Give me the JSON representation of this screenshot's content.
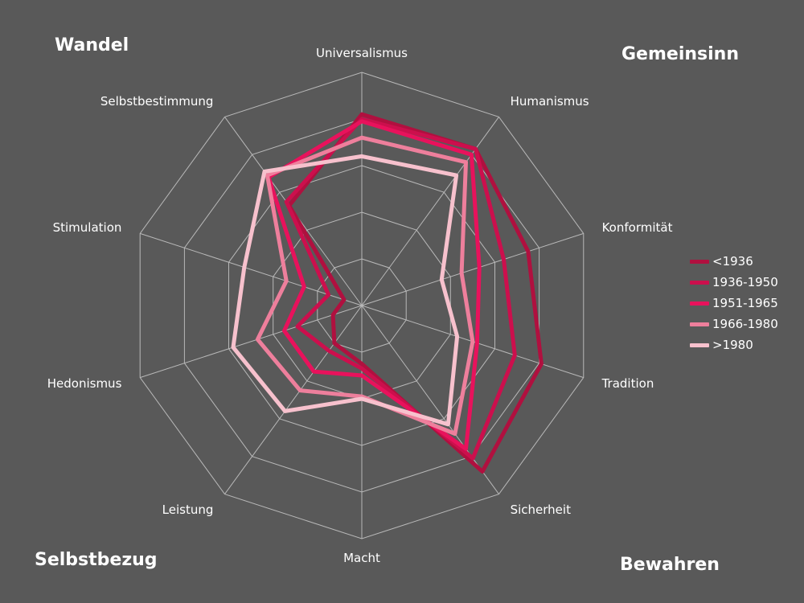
{
  "corners": {
    "top_left": "Wandel",
    "top_right": "Gemeinsinn",
    "bottom_left": "Selbstbezug",
    "bottom_right": "Bewahren"
  },
  "chart_data": {
    "type": "radar",
    "axes": [
      "Universalismus",
      "Humanismus",
      "Konformität",
      "Tradition",
      "Sicherheit",
      "Macht",
      "Leistung",
      "Hedonismus",
      "Stimulation",
      "Selbstbestimmung"
    ],
    "range": [
      0,
      1
    ],
    "rings": 5,
    "grid": true,
    "legend_position": "right",
    "series": [
      {
        "name": "<1936",
        "color": "#b0103f",
        "values": [
          0.82,
          0.83,
          0.75,
          0.81,
          0.88,
          0.25,
          0.2,
          0.13,
          0.08,
          0.53
        ]
      },
      {
        "name": "1936-1950",
        "color": "#cc0f4d",
        "values": [
          0.8,
          0.83,
          0.64,
          0.69,
          0.81,
          0.27,
          0.24,
          0.29,
          0.15,
          0.55
        ]
      },
      {
        "name": "1951-1965",
        "color": "#e8125c",
        "values": [
          0.79,
          0.8,
          0.53,
          0.52,
          0.76,
          0.3,
          0.35,
          0.35,
          0.26,
          0.68
        ]
      },
      {
        "name": "1966-1980",
        "color": "#ee7f9c",
        "values": [
          0.72,
          0.76,
          0.45,
          0.5,
          0.68,
          0.39,
          0.45,
          0.47,
          0.34,
          0.69
        ]
      },
      {
        "name": ">1980",
        "color": "#f7c1cd",
        "values": [
          0.64,
          0.69,
          0.36,
          0.43,
          0.63,
          0.4,
          0.56,
          0.58,
          0.53,
          0.71
        ]
      }
    ]
  }
}
